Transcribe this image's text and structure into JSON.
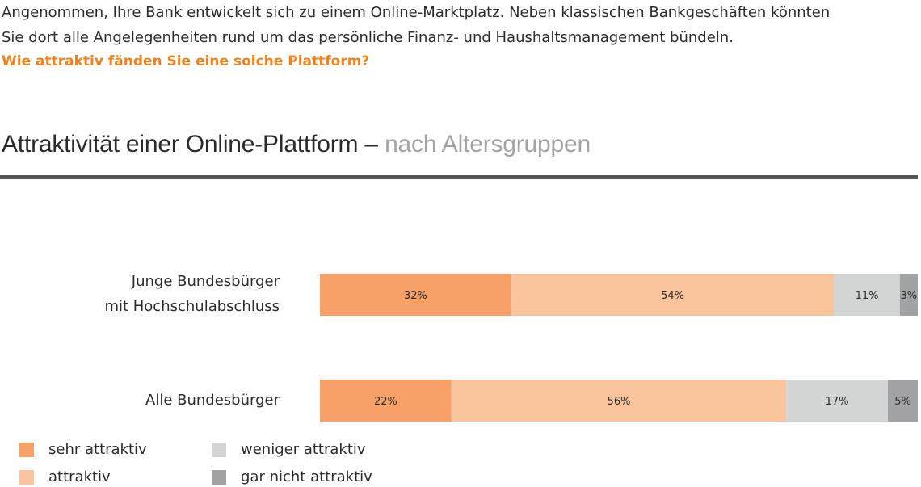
{
  "intro": {
    "line1": "Angenommen, Ihre Bank entwickelt sich zu einem Online-Marktplatz. Neben klassischen Bankgeschäften könnten",
    "line2": "Sie dort alle Angelegenheiten rund um das persönliche Finanz- und Haushaltsmanagement bündeln.",
    "question": "Wie attraktiv fänden Sie eine solche Plattform?"
  },
  "colors": {
    "sehr_attraktiv": "#f7a068",
    "attraktiv": "#fac49c",
    "weniger_attraktiv": "#d3d5d5",
    "gar_nicht_attraktiv": "#a3a3a5",
    "accent": "#f0821e",
    "rule": "#555555"
  },
  "chart_data": {
    "type": "bar",
    "orientation": "horizontal",
    "stacked": true,
    "title": "Attraktivität einer Online-Plattform –",
    "subtitle": "nach Altersgruppen",
    "categories": [
      [
        "Junge Bundesbürger",
        "mit Hochschulabschluss"
      ],
      [
        "Alle Bundesbürger"
      ]
    ],
    "series": [
      {
        "name": "sehr attraktiv",
        "values": [
          32,
          22
        ],
        "color": "#f7a068"
      },
      {
        "name": "attraktiv",
        "values": [
          54,
          56
        ],
        "color": "#fac49c"
      },
      {
        "name": "weniger attraktiv",
        "values": [
          11,
          17
        ],
        "color": "#d3d5d5"
      },
      {
        "name": "gar nicht attraktiv",
        "values": [
          3,
          5
        ],
        "color": "#a3a3a5"
      }
    ],
    "value_suffix": "%",
    "xlim": [
      0,
      100
    ],
    "grid": false,
    "legend_position": "bottom-left"
  }
}
